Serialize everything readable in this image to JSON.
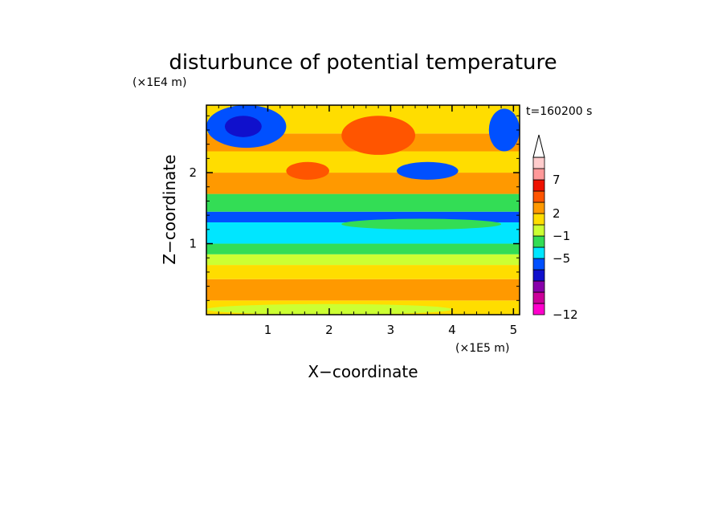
{
  "chart_data": {
    "type": "heatmap",
    "title": "disturbunce of potential temperature",
    "time_label": "t=160200 s",
    "xlabel": "X−coordinate",
    "ylabel": "Z−coordinate",
    "x_unit": "(×1E5 m)",
    "y_unit": "(×1E4 m)",
    "xlim": [
      0,
      5.1
    ],
    "ylim": [
      0,
      2.95
    ],
    "xticks": [
      {
        "value": 1,
        "label": "1"
      },
      {
        "value": 2,
        "label": "2"
      },
      {
        "value": 3,
        "label": "3"
      },
      {
        "value": 4,
        "label": "4"
      },
      {
        "value": 5,
        "label": "5"
      }
    ],
    "yticks": [
      {
        "value": 1,
        "label": "1"
      },
      {
        "value": 2,
        "label": "2"
      }
    ],
    "colorbar": {
      "levels": [
        {
          "color": "#ff00cc"
        },
        {
          "color": "#cc0099"
        },
        {
          "color": "#8800aa"
        },
        {
          "color": "#1010cc"
        },
        {
          "color": "#0050ff"
        },
        {
          "color": "#00e6ff"
        },
        {
          "color": "#33dd55"
        },
        {
          "color": "#ccff33"
        },
        {
          "color": "#ffdd00"
        },
        {
          "color": "#ff9900"
        },
        {
          "color": "#ff5500"
        },
        {
          "color": "#ee1100"
        },
        {
          "color": "#ff9999"
        },
        {
          "color": "#ffcccc"
        }
      ],
      "labels": [
        {
          "level_boundary": 0,
          "label": "−12"
        },
        {
          "level_boundary": 5,
          "label": "−5"
        },
        {
          "level_boundary": 7,
          "label": "−1"
        },
        {
          "level_boundary": 9,
          "label": "2"
        },
        {
          "level_boundary": 12,
          "label": "7"
        }
      ],
      "extend_max": true
    },
    "field_bands": [
      {
        "z": [
          0.0,
          0.2
        ],
        "level": 8
      },
      {
        "z": [
          0.2,
          0.5
        ],
        "level": 9
      },
      {
        "z": [
          0.5,
          0.7
        ],
        "level": 8
      },
      {
        "z": [
          0.7,
          0.85
        ],
        "level": 7
      },
      {
        "z": [
          0.85,
          1.0
        ],
        "level": 6
      },
      {
        "z": [
          1.0,
          1.3
        ],
        "level": 5
      },
      {
        "z": [
          1.3,
          1.45
        ],
        "level": 4
      },
      {
        "z": [
          1.45,
          1.7
        ],
        "level": 6
      },
      {
        "z": [
          1.7,
          2.0
        ],
        "level": 9
      },
      {
        "z": [
          2.0,
          2.3
        ],
        "level": 8
      },
      {
        "z": [
          2.3,
          2.55
        ],
        "level": 9
      },
      {
        "z": [
          2.55,
          2.95
        ],
        "level": 8
      }
    ],
    "field_patches": [
      {
        "x": [
          0.0,
          1.3
        ],
        "z": [
          2.35,
          2.95
        ],
        "level": 4
      },
      {
        "x": [
          0.3,
          0.9
        ],
        "z": [
          2.5,
          2.8
        ],
        "level": 3
      },
      {
        "x": [
          2.2,
          3.4
        ],
        "z": [
          2.25,
          2.8
        ],
        "level": 10
      },
      {
        "x": [
          1.3,
          2.0
        ],
        "z": [
          1.9,
          2.15
        ],
        "level": 10
      },
      {
        "x": [
          3.1,
          4.1
        ],
        "z": [
          1.9,
          2.15
        ],
        "level": 4
      },
      {
        "x": [
          4.6,
          5.1
        ],
        "z": [
          2.3,
          2.9
        ],
        "level": 4
      },
      {
        "x": [
          2.2,
          4.8
        ],
        "z": [
          1.2,
          1.35
        ],
        "level": 6
      },
      {
        "x": [
          0.0,
          4.0
        ],
        "z": [
          0.0,
          0.15
        ],
        "level": 7
      }
    ]
  }
}
